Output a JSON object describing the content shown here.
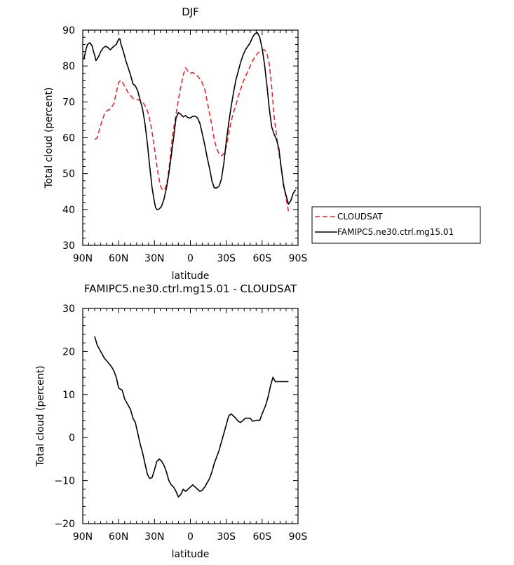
{
  "chart_data": [
    {
      "type": "line",
      "title": "DJF",
      "xlabel": "latitude",
      "ylabel": "Total cloud (percent)",
      "xlim": [
        90,
        -90
      ],
      "ylim": [
        30,
        90
      ],
      "x_ticks": [
        90,
        60,
        30,
        0,
        -30,
        -60,
        -90
      ],
      "x_tick_labels": [
        "90N",
        "60N",
        "30N",
        "0",
        "30S",
        "60S",
        "90S"
      ],
      "y_ticks": [
        30,
        40,
        50,
        60,
        70,
        80,
        90
      ],
      "y_tick_labels": [
        "30",
        "40",
        "50",
        "60",
        "70",
        "80",
        "90"
      ],
      "grid": false,
      "legend_position": "right",
      "series": [
        {
          "name": "CLOUDSAT",
          "color": "#e8262b",
          "dash": "dashed",
          "x": [
            80,
            78,
            75,
            72,
            70,
            67,
            64,
            62,
            60,
            58,
            55,
            52,
            48,
            44,
            40,
            37,
            35,
            33,
            31,
            29,
            27,
            25,
            23,
            21,
            19,
            17,
            15,
            12,
            9,
            6,
            4,
            2,
            0,
            -2,
            -4,
            -6,
            -9,
            -12,
            -15,
            -18,
            -20,
            -22,
            -24,
            -26,
            -28,
            -30,
            -32,
            -34,
            -36,
            -38,
            -40,
            -44,
            -48,
            -52,
            -56,
            -60,
            -62,
            -64,
            -66,
            -68,
            -70,
            -73,
            -76,
            -79,
            -82
          ],
          "y": [
            59.5,
            60.0,
            63.5,
            66.5,
            67.5,
            68.0,
            69.5,
            72.5,
            75.5,
            76.0,
            74.5,
            72.5,
            71.0,
            70.7,
            70.0,
            68.5,
            66.5,
            63.5,
            59.5,
            54.5,
            50.0,
            46.5,
            45.3,
            45.8,
            48.5,
            54.0,
            60.5,
            66.5,
            72.5,
            77.5,
            79.5,
            78.5,
            78.0,
            78.2,
            77.8,
            77.2,
            76.0,
            73.5,
            68.5,
            63.5,
            59.5,
            57.0,
            55.5,
            55.0,
            55.5,
            57.5,
            61.0,
            64.5,
            67.0,
            69.0,
            71.5,
            75.5,
            78.5,
            81.5,
            83.5,
            84.5,
            84.5,
            83.5,
            80.5,
            74.0,
            66.0,
            58.0,
            51.5,
            45.0,
            39.5
          ]
        },
        {
          "name": "FAMIPC5.ne30.ctrl.mg15.01",
          "color": "#000000",
          "dash": "solid",
          "x": [
            89,
            88,
            87,
            86,
            84,
            82,
            81,
            80,
            79,
            77,
            75,
            73,
            71,
            69,
            67,
            64,
            62,
            60,
            59,
            58,
            56,
            54,
            52,
            50,
            48,
            46,
            44,
            42,
            40,
            38,
            36,
            34,
            32,
            30,
            29,
            28,
            27,
            26,
            25,
            24,
            22,
            20,
            18,
            16,
            14,
            12,
            10,
            8,
            6,
            4,
            2,
            0,
            -2,
            -4,
            -6,
            -8,
            -10,
            -12,
            -14,
            -16,
            -18,
            -20,
            -22,
            -24,
            -26,
            -28,
            -30,
            -32,
            -34,
            -36,
            -38,
            -40,
            -42,
            -44,
            -46,
            -48,
            -50,
            -52,
            -54,
            -56,
            -58,
            -60,
            -62,
            -64,
            -66,
            -68,
            -70,
            -72,
            -74,
            -76,
            -78,
            -80,
            -82,
            -84,
            -86,
            -88
          ],
          "y": [
            82.0,
            83.5,
            85.0,
            86.0,
            86.5,
            85.5,
            84.0,
            83.0,
            81.5,
            82.5,
            84.0,
            85.0,
            85.5,
            85.2,
            84.5,
            85.5,
            86.0,
            87.5,
            87.6,
            86.0,
            84.0,
            81.5,
            79.5,
            77.5,
            75.0,
            74.5,
            73.0,
            70.5,
            68.0,
            64.0,
            58.5,
            52.0,
            46.0,
            42.0,
            40.5,
            40.0,
            40.0,
            40.2,
            40.5,
            41.0,
            43.0,
            46.0,
            50.0,
            55.0,
            60.0,
            65.5,
            67.0,
            66.5,
            65.8,
            66.2,
            65.6,
            65.5,
            66.0,
            66.0,
            65.5,
            64.0,
            61.0,
            58.0,
            54.5,
            51.5,
            48.0,
            46.0,
            46.0,
            46.5,
            48.5,
            53.0,
            59.0,
            64.0,
            68.5,
            72.5,
            76.0,
            78.5,
            81.0,
            83.0,
            84.5,
            85.5,
            86.5,
            88.0,
            89.0,
            89.3,
            88.0,
            85.0,
            80.5,
            74.5,
            68.0,
            63.0,
            61.0,
            59.5,
            57.0,
            51.5,
            46.5,
            44.0,
            41.5,
            42.5,
            44.5,
            45.5
          ]
        }
      ]
    },
    {
      "type": "line",
      "title": "FAMIPC5.ne30.ctrl.mg15.01 - CLOUDSAT",
      "xlabel": "latitude",
      "ylabel": "Total cloud (percent)",
      "xlim": [
        90,
        -90
      ],
      "ylim": [
        -20,
        30
      ],
      "x_ticks": [
        90,
        60,
        30,
        0,
        -30,
        -60,
        -90
      ],
      "x_tick_labels": [
        "90N",
        "60N",
        "30N",
        "0",
        "30S",
        "60S",
        "90S"
      ],
      "y_ticks": [
        -20,
        -10,
        0,
        10,
        20,
        30
      ],
      "y_tick_labels": [
        "−20",
        "−10",
        "0",
        "10",
        "20",
        "30"
      ],
      "grid": false,
      "series": [
        {
          "color": "#000000",
          "dash": "solid",
          "x": [
            80,
            78,
            75,
            72,
            69,
            66,
            64,
            62,
            60,
            57,
            55,
            53,
            50,
            48,
            46,
            44,
            42,
            40,
            38,
            36,
            34,
            32,
            30,
            28,
            26,
            24,
            22,
            20,
            18,
            16,
            14,
            12,
            10,
            8,
            6,
            4,
            2,
            0,
            -2,
            -4,
            -6,
            -8,
            -10,
            -12,
            -14,
            -16,
            -18,
            -20,
            -22,
            -24,
            -26,
            -28,
            -30,
            -32,
            -34,
            -36,
            -38,
            -40,
            -42,
            -44,
            -46,
            -48,
            -50,
            -52,
            -55,
            -58,
            -60,
            -63,
            -65,
            -67,
            -69,
            -71,
            -74,
            -76,
            -78,
            -79,
            -80,
            -82
          ],
          "y": [
            23.5,
            21.5,
            20.0,
            18.5,
            17.5,
            16.5,
            15.5,
            14.0,
            11.5,
            11.0,
            9.0,
            8.0,
            6.5,
            4.5,
            3.5,
            1.0,
            -1.5,
            -3.5,
            -6.0,
            -8.5,
            -9.5,
            -9.3,
            -7.5,
            -5.5,
            -5.0,
            -5.5,
            -6.5,
            -8.0,
            -10.0,
            -11.0,
            -11.5,
            -12.5,
            -13.8,
            -13.2,
            -12.0,
            -12.5,
            -12.0,
            -11.5,
            -11.0,
            -11.5,
            -12.0,
            -12.5,
            -12.2,
            -11.5,
            -10.5,
            -9.5,
            -8.0,
            -6.0,
            -4.5,
            -3.0,
            -1.0,
            1.0,
            3.0,
            5.0,
            5.5,
            5.0,
            4.5,
            3.8,
            3.5,
            4.0,
            4.5,
            4.5,
            4.5,
            3.8,
            4.0,
            4.0,
            5.5,
            7.5,
            9.5,
            12.0,
            14.0,
            13.0,
            13.0,
            13.0,
            13.0,
            13.0,
            13.0,
            13.0
          ]
        }
      ]
    }
  ]
}
